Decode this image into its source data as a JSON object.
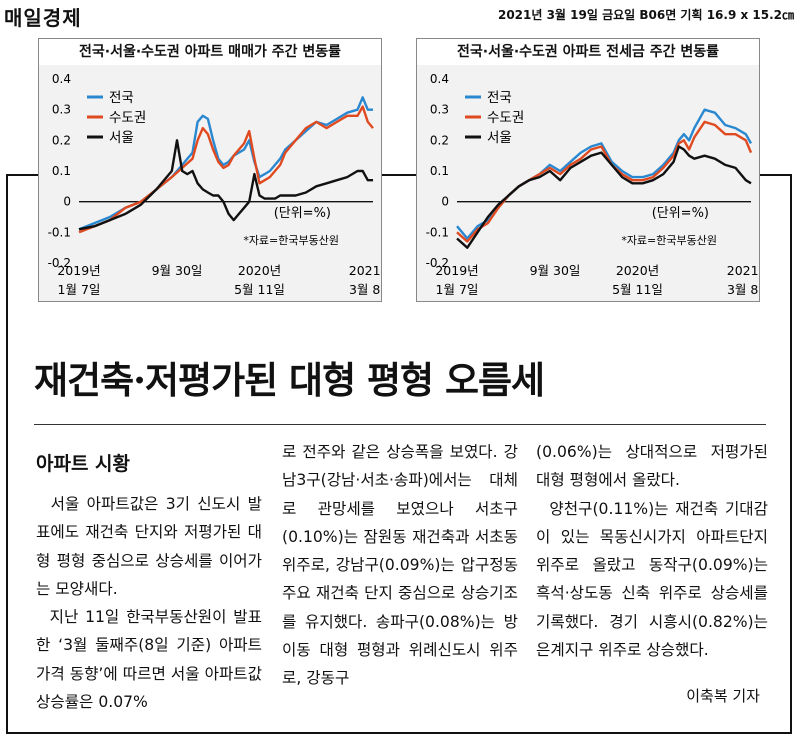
{
  "masthead": "매일경제",
  "edition": "2021년 3월 19일 금요일 B06면 기획 16.9 x 15.2㎝",
  "chart_data": [
    {
      "type": "line",
      "title": "전국·서울·수도권 아파트 매매가 주간 변동률",
      "unit_label": "(단위=%)",
      "source": "*자료=한국부동산원",
      "ylim": [
        -0.2,
        0.4
      ],
      "yticks": [
        "0.4",
        "0.3",
        "0.2",
        "0.1",
        "0",
        "-0.1",
        "-0.2"
      ],
      "xlim": [
        0,
        114
      ],
      "xticks": [
        {
          "x": 0,
          "line1": "2019년",
          "line2": "1월 7일"
        },
        {
          "x": 38,
          "line1": "9월 30일",
          "line2": ""
        },
        {
          "x": 70,
          "line1": "2020년",
          "line2": "5월 11일"
        },
        {
          "x": 113,
          "line1": "2021년",
          "line2": "3월 8일"
        }
      ],
      "series": [
        {
          "name": "전국",
          "color": "#2a88d0",
          "x": [
            0,
            6,
            12,
            18,
            24,
            30,
            36,
            40,
            44,
            46,
            48,
            50,
            52,
            54,
            56,
            58,
            60,
            62,
            64,
            66,
            68,
            70,
            72,
            74,
            76,
            78,
            80,
            84,
            88,
            92,
            96,
            100,
            104,
            108,
            110,
            112,
            114
          ],
          "y": [
            -0.09,
            -0.07,
            -0.05,
            -0.02,
            0.0,
            0.04,
            0.08,
            0.12,
            0.16,
            0.26,
            0.28,
            0.27,
            0.2,
            0.14,
            0.12,
            0.13,
            0.15,
            0.16,
            0.17,
            0.2,
            0.13,
            0.08,
            0.09,
            0.1,
            0.12,
            0.14,
            0.17,
            0.2,
            0.23,
            0.26,
            0.25,
            0.27,
            0.29,
            0.3,
            0.34,
            0.3,
            0.3
          ]
        },
        {
          "name": "수도권",
          "color": "#e04a20",
          "x": [
            0,
            6,
            12,
            18,
            24,
            30,
            36,
            40,
            44,
            46,
            48,
            50,
            52,
            54,
            56,
            58,
            60,
            62,
            64,
            66,
            68,
            70,
            72,
            74,
            76,
            78,
            80,
            84,
            88,
            92,
            96,
            100,
            104,
            108,
            110,
            112,
            114
          ],
          "y": [
            -0.1,
            -0.08,
            -0.06,
            -0.02,
            0.0,
            0.04,
            0.08,
            0.11,
            0.14,
            0.2,
            0.24,
            0.22,
            0.17,
            0.13,
            0.11,
            0.12,
            0.15,
            0.17,
            0.19,
            0.23,
            0.14,
            0.06,
            0.07,
            0.08,
            0.1,
            0.12,
            0.16,
            0.2,
            0.24,
            0.26,
            0.24,
            0.26,
            0.28,
            0.28,
            0.31,
            0.26,
            0.24
          ]
        },
        {
          "name": "서울",
          "color": "#111111",
          "x": [
            0,
            6,
            12,
            18,
            24,
            30,
            36,
            38,
            40,
            42,
            44,
            46,
            48,
            50,
            52,
            54,
            56,
            58,
            60,
            62,
            64,
            66,
            68,
            70,
            72,
            74,
            76,
            78,
            80,
            84,
            88,
            92,
            96,
            100,
            104,
            108,
            110,
            112,
            114
          ],
          "y": [
            -0.09,
            -0.08,
            -0.06,
            -0.04,
            -0.01,
            0.04,
            0.1,
            0.2,
            0.1,
            0.09,
            0.1,
            0.06,
            0.04,
            0.03,
            0.02,
            0.02,
            0.0,
            -0.04,
            -0.06,
            -0.04,
            -0.02,
            0.0,
            0.09,
            0.02,
            0.01,
            0.01,
            0.01,
            0.02,
            0.02,
            0.02,
            0.03,
            0.05,
            0.06,
            0.07,
            0.08,
            0.1,
            0.1,
            0.07,
            0.07
          ]
        }
      ]
    },
    {
      "type": "line",
      "title": "전국·서울·수도권 아파트 전세금 주간 변동률",
      "unit_label": "(단위=%)",
      "source": "*자료=한국부동산원",
      "ylim": [
        -0.2,
        0.4
      ],
      "yticks": [
        "0.4",
        "0.3",
        "0.2",
        "0.1",
        "0",
        "-0.1",
        "-0.2"
      ],
      "xlim": [
        0,
        114
      ],
      "xticks": [
        {
          "x": 0,
          "line1": "2019년",
          "line2": "1월 7일"
        },
        {
          "x": 38,
          "line1": "9월 30일",
          "line2": ""
        },
        {
          "x": 70,
          "line1": "2020년",
          "line2": "5월 11일"
        },
        {
          "x": 113,
          "line1": "2021년",
          "line2": "3월 8일"
        }
      ],
      "series": [
        {
          "name": "전국",
          "color": "#2a88d0",
          "x": [
            0,
            4,
            8,
            12,
            16,
            20,
            24,
            28,
            32,
            36,
            40,
            44,
            48,
            52,
            56,
            60,
            64,
            68,
            72,
            76,
            80,
            84,
            86,
            88,
            90,
            92,
            96,
            100,
            104,
            108,
            112,
            114
          ],
          "y": [
            -0.08,
            -0.12,
            -0.08,
            -0.06,
            -0.02,
            0.02,
            0.05,
            0.07,
            0.09,
            0.12,
            0.1,
            0.13,
            0.16,
            0.18,
            0.19,
            0.13,
            0.1,
            0.08,
            0.08,
            0.09,
            0.12,
            0.16,
            0.2,
            0.22,
            0.2,
            0.24,
            0.3,
            0.29,
            0.25,
            0.24,
            0.22,
            0.19
          ]
        },
        {
          "name": "수도권",
          "color": "#e04a20",
          "x": [
            0,
            4,
            8,
            12,
            16,
            20,
            24,
            28,
            32,
            36,
            40,
            44,
            48,
            52,
            56,
            60,
            64,
            68,
            72,
            76,
            80,
            84,
            86,
            88,
            90,
            92,
            96,
            100,
            104,
            108,
            112,
            114
          ],
          "y": [
            -0.1,
            -0.13,
            -0.09,
            -0.07,
            -0.02,
            0.02,
            0.05,
            0.07,
            0.09,
            0.11,
            0.09,
            0.12,
            0.14,
            0.17,
            0.18,
            0.12,
            0.09,
            0.07,
            0.07,
            0.08,
            0.11,
            0.15,
            0.19,
            0.2,
            0.17,
            0.21,
            0.26,
            0.25,
            0.22,
            0.22,
            0.2,
            0.16
          ]
        },
        {
          "name": "서울",
          "color": "#111111",
          "x": [
            0,
            4,
            8,
            12,
            16,
            20,
            24,
            28,
            32,
            36,
            40,
            44,
            48,
            52,
            56,
            60,
            64,
            68,
            72,
            76,
            80,
            84,
            86,
            88,
            90,
            92,
            96,
            100,
            104,
            108,
            112,
            114
          ],
          "y": [
            -0.12,
            -0.15,
            -0.1,
            -0.05,
            -0.01,
            0.02,
            0.05,
            0.07,
            0.08,
            0.1,
            0.07,
            0.11,
            0.13,
            0.15,
            0.16,
            0.12,
            0.08,
            0.06,
            0.06,
            0.07,
            0.09,
            0.13,
            0.18,
            0.17,
            0.15,
            0.14,
            0.15,
            0.14,
            0.12,
            0.11,
            0.07,
            0.06
          ]
        }
      ]
    }
  ],
  "article": {
    "headline": "재건축·저평가된 대형 평형 오름세",
    "section": "아파트 시황",
    "col1": [
      "  서울 아파트값은 3기 신도시 발표에도 재건축 단지와 저평가된 대형 평형 중심으로 상승세를 이어가는 모양새다.",
      "  지난 11일 한국부동산원이 발표한 ‘3월 둘째주(8일 기준) 아파트 가격 동향’에 따르면 서울 아파트값 상승률은 0.07%"
    ],
    "col2": [
      "로 전주와 같은 상승폭을 보였다. 강남3구(강남·서초·송파)에서는 대체로 관망세를 보였으나 서초구(0.10%)는 잠원동 재건축과 서초동 위주로, 강남구(0.09%)는 압구정동 주요 재건축 단지 중심으로 상승기조를 유지했다. 송파구(0.08%)는 방이동 대형 평형과 위례신도시 위주로, 강동구"
    ],
    "col3": [
      "(0.06%)는 상대적으로 저평가된 대형 평형에서 올랐다.",
      "  양천구(0.11%)는 재건축 기대감이 있는 목동신시가지 아파트단지 위주로 올랐고 동작구(0.09%)는 흑석·상도동 신축 위주로 상승세를 기록했다. 경기 시흥시(0.82%)는 은계지구 위주로 상승했다."
    ],
    "byline": "이축복 기자"
  }
}
